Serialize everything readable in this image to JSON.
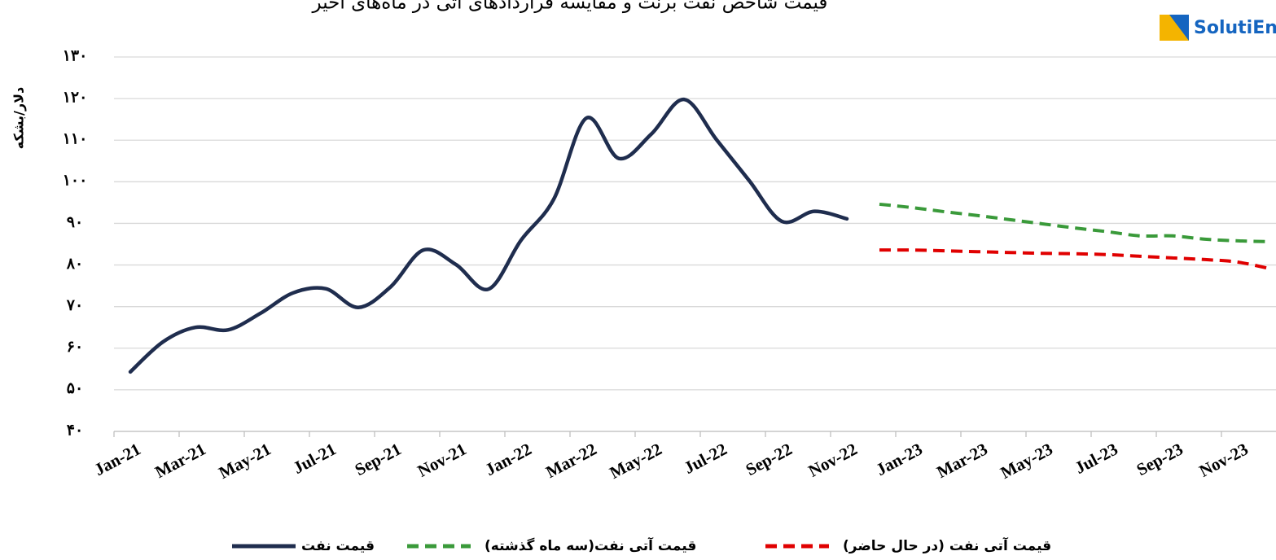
{
  "chart_data": {
    "type": "line",
    "title": "قیمت شاخص نفت برنت و مقایسه قراردادهای آتی در ماه‌های اخیر",
    "logo": "SolutiEn",
    "y_label": "دلار/بشکه",
    "categories": [
      "Jan-21",
      null,
      "Mar-21",
      null,
      "May-21",
      null,
      "Jul-21",
      null,
      "Sep-21",
      null,
      "Nov-21",
      null,
      "Jan-22",
      null,
      "Mar-22",
      null,
      "May-22",
      null,
      "Jul-22",
      null,
      "Sep-22",
      null,
      "Nov-22",
      null,
      "Jan-23",
      null,
      "Mar-23",
      null,
      "May-23",
      null,
      "Jul-23",
      null,
      "Sep-23",
      null,
      "Nov-23",
      null
    ],
    "series": [
      {
        "name": "قیمت نفت",
        "color": "#1f2d4e",
        "dash": false,
        "values": [
          54.3,
          61.5,
          65.0,
          64.4,
          68.4,
          73.3,
          74.3,
          69.8,
          74.8,
          83.6,
          80.1,
          74.2,
          86.0,
          95.8,
          115.3,
          105.6,
          111.5,
          119.8,
          110.1,
          100.3,
          90.5,
          92.9,
          91.1,
          null,
          null,
          null,
          null,
          null,
          null,
          null,
          null,
          null,
          null,
          null,
          null,
          null
        ]
      },
      {
        "name": "قیمت آتی نفت(سه ماه گذشته)",
        "color": "#3a9a3a",
        "dash": true,
        "values": [
          null,
          null,
          null,
          null,
          null,
          null,
          null,
          null,
          null,
          null,
          null,
          null,
          null,
          null,
          null,
          null,
          null,
          null,
          null,
          null,
          null,
          null,
          null,
          94.6,
          93.8,
          92.8,
          91.9,
          90.9,
          89.9,
          88.9,
          88.0,
          87.0,
          87.0,
          86.2,
          85.8,
          85.6
        ]
      },
      {
        "name": "قیمت آتی نفت (در حال حاضر)",
        "color": "#e00000",
        "dash": true,
        "values": [
          null,
          null,
          null,
          null,
          null,
          null,
          null,
          null,
          null,
          null,
          null,
          null,
          null,
          null,
          null,
          null,
          null,
          null,
          null,
          null,
          null,
          null,
          null,
          83.6,
          83.6,
          83.4,
          83.2,
          83.0,
          82.8,
          82.7,
          82.5,
          82.1,
          81.7,
          81.3,
          80.7,
          79.1
        ]
      }
    ],
    "ylim": [
      40,
      130
    ],
    "yticks": [
      {
        "value": 40,
        "label": "۴۰"
      },
      {
        "value": 50,
        "label": "۵۰"
      },
      {
        "value": 60,
        "label": "۶۰"
      },
      {
        "value": 70,
        "label": "۷۰"
      },
      {
        "value": 80,
        "label": "۸۰"
      },
      {
        "value": 90,
        "label": "۹۰"
      },
      {
        "value": 100,
        "label": "۱۰۰"
      },
      {
        "value": 110,
        "label": "۱۱۰"
      },
      {
        "value": 120,
        "label": "۱۲۰"
      },
      {
        "value": 130,
        "label": "۱۳۰"
      }
    ],
    "grid": true
  }
}
